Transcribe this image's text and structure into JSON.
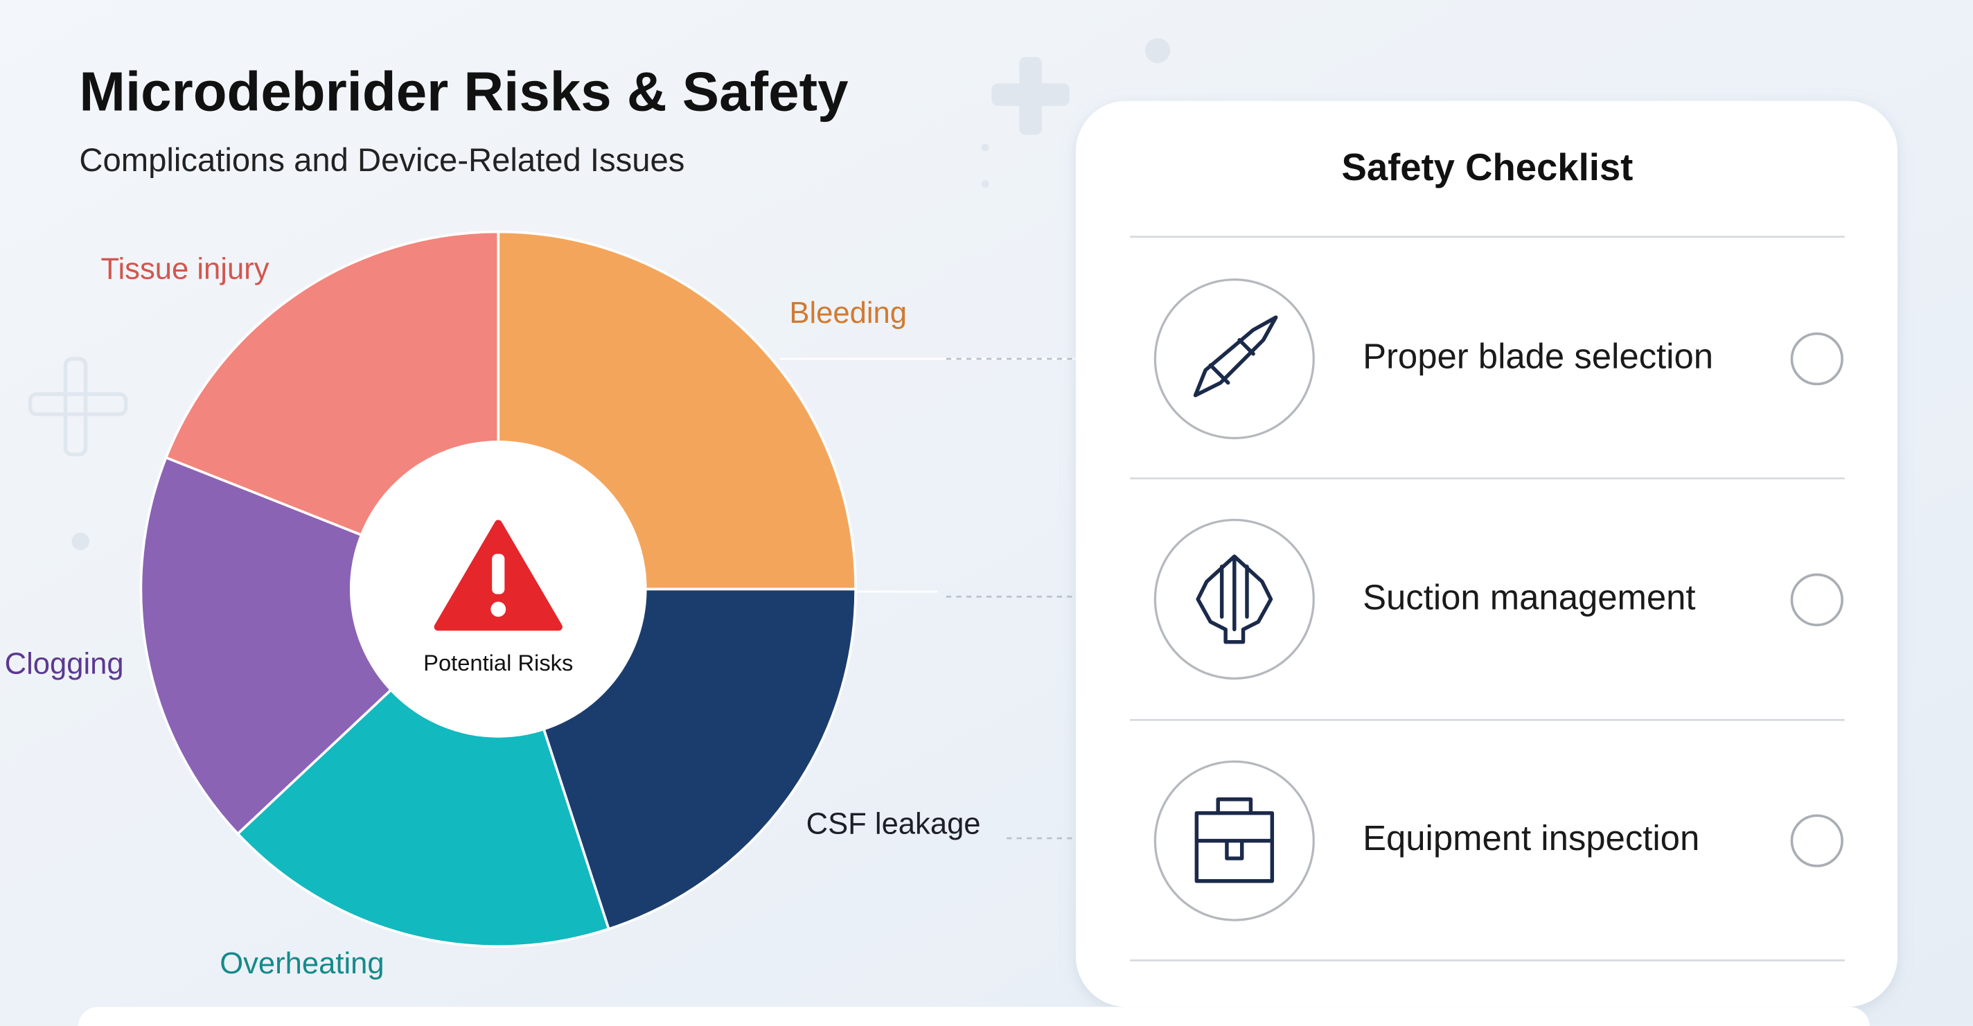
{
  "chart_data": {
    "type": "pie",
    "title": "Microdebrider Risks & Safety",
    "subtitle": "Complications and Device-Related Issues",
    "center_label": "Potential Risks",
    "categories": [
      "Bleeding",
      "CSF leakage",
      "Overheating",
      "Clogging",
      "Tissue injury"
    ],
    "values": [
      25,
      20,
      18,
      18,
      19
    ],
    "colors": [
      "#f4a55c",
      "#1b3d6e",
      "#12b9bf",
      "#8b63b5",
      "#f2857d"
    ],
    "label_colors": [
      "#d27a30",
      "#1e1e28",
      "#148a8a",
      "#5c3891",
      "#d2564e"
    ]
  },
  "checklist": {
    "title": "Safety Checklist",
    "items": [
      "Proper blade selection",
      "Suction management",
      "Equipment inspection"
    ]
  }
}
